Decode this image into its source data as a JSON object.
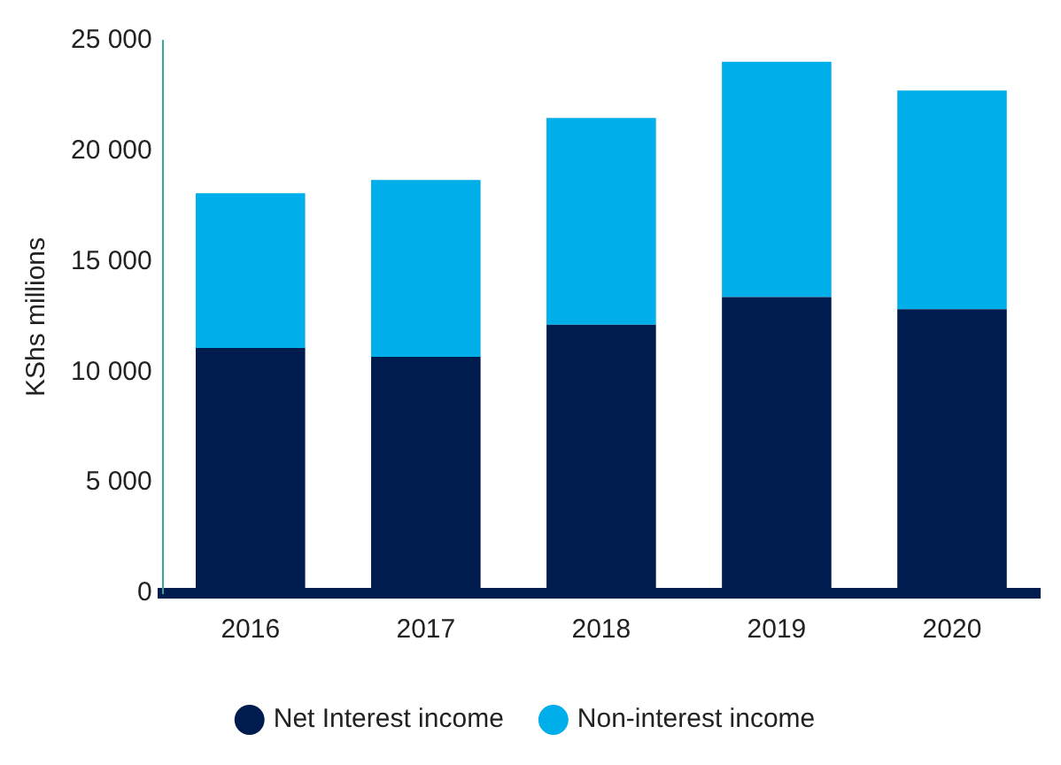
{
  "chart_data": {
    "type": "bar",
    "ylabel": "KShs millions",
    "categories": [
      "2016",
      "2017",
      "2018",
      "2019",
      "2020"
    ],
    "stacked": true,
    "series": [
      {
        "name": "Net Interest income",
        "color": "#001c4e",
        "values": [
          11100,
          10700,
          12150,
          13400,
          12850
        ]
      },
      {
        "name": "Non-interest income",
        "color": "#00aeea",
        "values": [
          7000,
          8000,
          9350,
          10650,
          9900
        ]
      }
    ],
    "ylim": [
      0,
      25000
    ],
    "yticks": [
      {
        "value": 0,
        "label": "0"
      },
      {
        "value": 5000,
        "label": "5 000"
      },
      {
        "value": 10000,
        "label": "10 000"
      },
      {
        "value": 15000,
        "label": "15 000"
      },
      {
        "value": 20000,
        "label": "20 000"
      },
      {
        "value": 25000,
        "label": "25 000"
      }
    ],
    "legend": "bottom"
  }
}
